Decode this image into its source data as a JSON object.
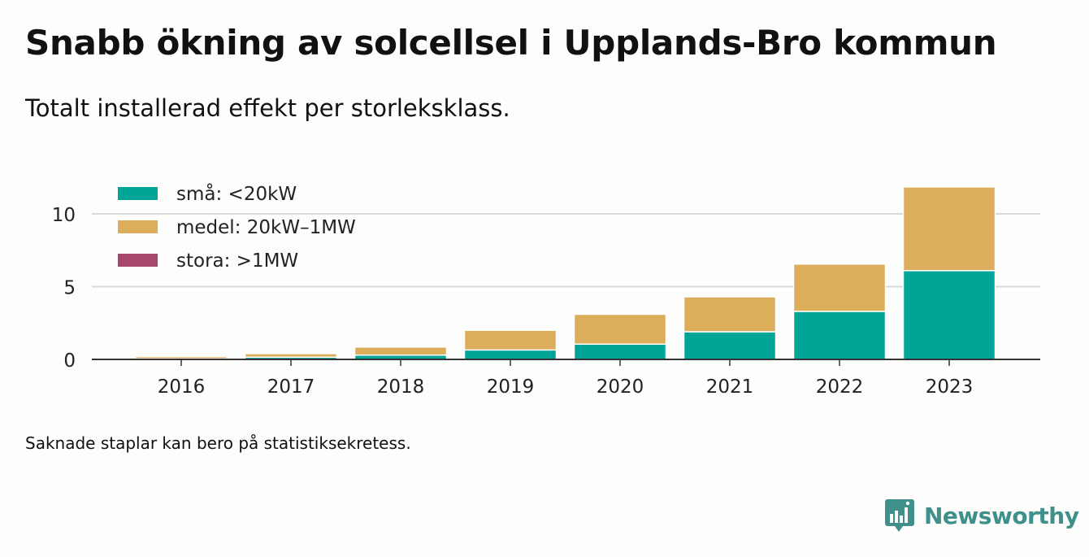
{
  "title": "Snabb ökning av solcellsel i Upplands-Bro kommun",
  "subtitle": "Totalt installerad effekt per storleksklass.",
  "footnote": "Saknade staplar kan bero på statistiksekretess.",
  "brand": "Newsworthy",
  "colors": {
    "sma": "#00a598",
    "medel": "#dcad5a",
    "stora": "#a8476b",
    "grid": "#d9d9d9",
    "axis": "#333333",
    "brand": "#3f8f8b"
  },
  "chart_data": {
    "type": "bar",
    "stacked": true,
    "categories": [
      "2016",
      "2017",
      "2018",
      "2019",
      "2020",
      "2021",
      "2022",
      "2023"
    ],
    "series": [
      {
        "name": "små: <20kW",
        "color": "#00a598",
        "values": [
          0.05,
          0.15,
          0.3,
          0.65,
          1.05,
          1.9,
          3.3,
          6.1
        ]
      },
      {
        "name": "medel: 20kW–1MW",
        "color": "#dcad5a",
        "values": [
          0.15,
          0.25,
          0.55,
          1.35,
          2.05,
          2.4,
          3.25,
          5.75
        ]
      },
      {
        "name": "stora: >1MW",
        "color": "#a8476b",
        "values": [
          0,
          0,
          0,
          0,
          0,
          0,
          0,
          0
        ]
      }
    ],
    "yticks": [
      0,
      5,
      10
    ],
    "ylim": [
      0,
      12
    ],
    "grid": true,
    "legend_position": "top-left"
  }
}
